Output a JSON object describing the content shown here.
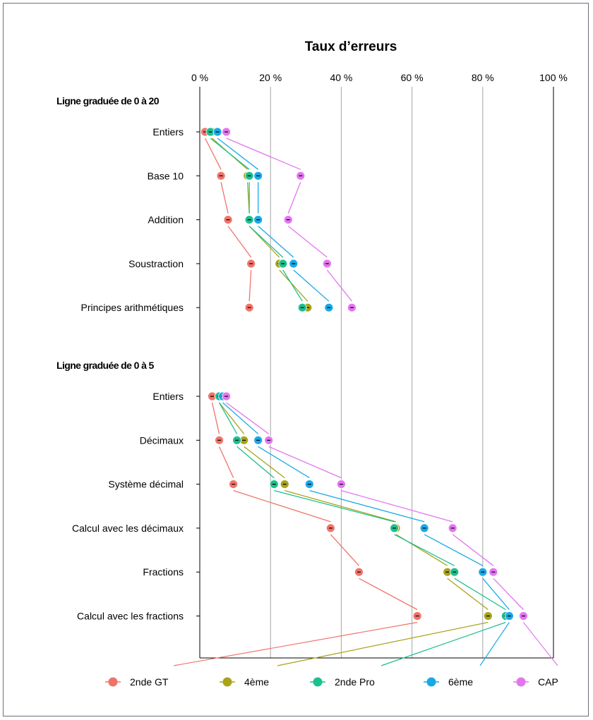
{
  "chart_data": {
    "type": "scatter",
    "title": "Taux d’erreurs",
    "xlim": [
      0,
      100
    ],
    "x_ticks": [
      "0 %",
      "20 %",
      "40 %",
      "60 %",
      "80 %",
      "100 %"
    ],
    "x_tick_values": [
      0,
      20,
      40,
      60,
      80,
      100
    ],
    "grid": "vertical",
    "legend_position": "bottom",
    "series_names": [
      "2nde GT",
      "4ème",
      "2nde Pro",
      "6ème",
      "CAP"
    ],
    "colors": {
      "2nde GT": "#f0736a",
      "4ème": "#a8a31a",
      "2nde Pro": "#1dbf8f",
      "6ème": "#19a9e6",
      "CAP": "#e376f0"
    },
    "groups": [
      {
        "label": "Ligne graduée de 0 à 20",
        "categories": [
          "Entiers",
          "Base 10",
          "Addition",
          "Soustraction",
          "Principes arithmétiques"
        ],
        "values": {
          "2nde GT": [
            1.5,
            6,
            8,
            14.5,
            14
          ],
          "4ème": [
            3.5,
            13.5,
            14,
            22.5,
            30.5
          ],
          "2nde Pro": [
            3,
            14,
            14,
            23.5,
            29
          ],
          "6ème": [
            5,
            16.5,
            16.5,
            26.5,
            36.5
          ],
          "CAP": [
            7.5,
            28.5,
            25,
            36,
            43
          ]
        }
      },
      {
        "label": "Ligne graduée de 0 à 5",
        "categories": [
          "Entiers",
          "Décimaux",
          "Système décimal",
          "Calcul avec les décimaux",
          "Fractions",
          "Calcul avec les fractions"
        ],
        "values": {
          "2nde GT": [
            3.5,
            5.5,
            9.5,
            37,
            45,
            61.5
          ],
          "4ème": [
            5.5,
            12.5,
            24,
            55.5,
            70,
            81.5
          ],
          "2nde Pro": [
            5.5,
            10.5,
            21,
            55,
            72,
            86.5
          ],
          "6ème": [
            6.5,
            16.5,
            31,
            63.5,
            80,
            87.5
          ],
          "CAP": [
            7.5,
            19.5,
            40,
            71.5,
            83,
            91.5
          ]
        }
      }
    ]
  }
}
